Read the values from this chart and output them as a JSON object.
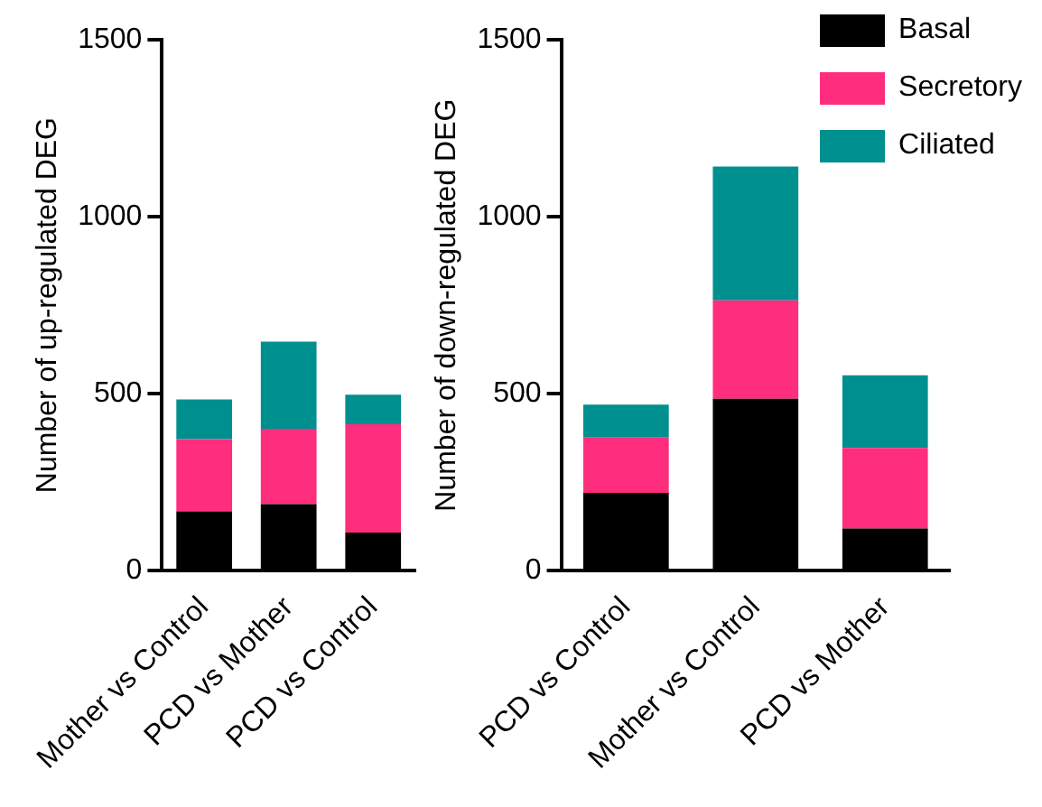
{
  "chart_data": [
    {
      "type": "bar",
      "ylabel": "Number of up-regulated DEG",
      "categories": [
        "Mother vs Control",
        "PCD vs Mother",
        "PCD vs Control"
      ],
      "stacked": true,
      "ylim": [
        0,
        1500
      ],
      "yticks": [
        0,
        500,
        1000,
        1500
      ],
      "grid": false,
      "legend": false,
      "series": [
        {
          "color": "#000000",
          "values": [
            168,
            188,
            108
          ]
        },
        {
          "color": "#ff2d7d",
          "values": [
            204,
            213,
            306
          ]
        },
        {
          "color": "#008f8f",
          "values": [
            112,
            246,
            83
          ]
        }
      ]
    },
    {
      "type": "bar",
      "ylabel": "Number of down-regulated DEG",
      "categories": [
        "PCD vs Control",
        "Mother vs Control",
        "PCD vs Mother"
      ],
      "stacked": true,
      "ylim": [
        0,
        1500
      ],
      "yticks": [
        0,
        500,
        1000,
        1500
      ],
      "grid": false,
      "legend": "top right",
      "series": [
        {
          "name": "Basal",
          "color": "#000000",
          "values": [
            220,
            486,
            119
          ]
        },
        {
          "name": "Secretory",
          "color": "#ff2d7d",
          "values": [
            156,
            278,
            228
          ]
        },
        {
          "name": "Ciliated",
          "color": "#008f8f",
          "values": [
            93,
            378,
            205
          ]
        }
      ]
    }
  ]
}
